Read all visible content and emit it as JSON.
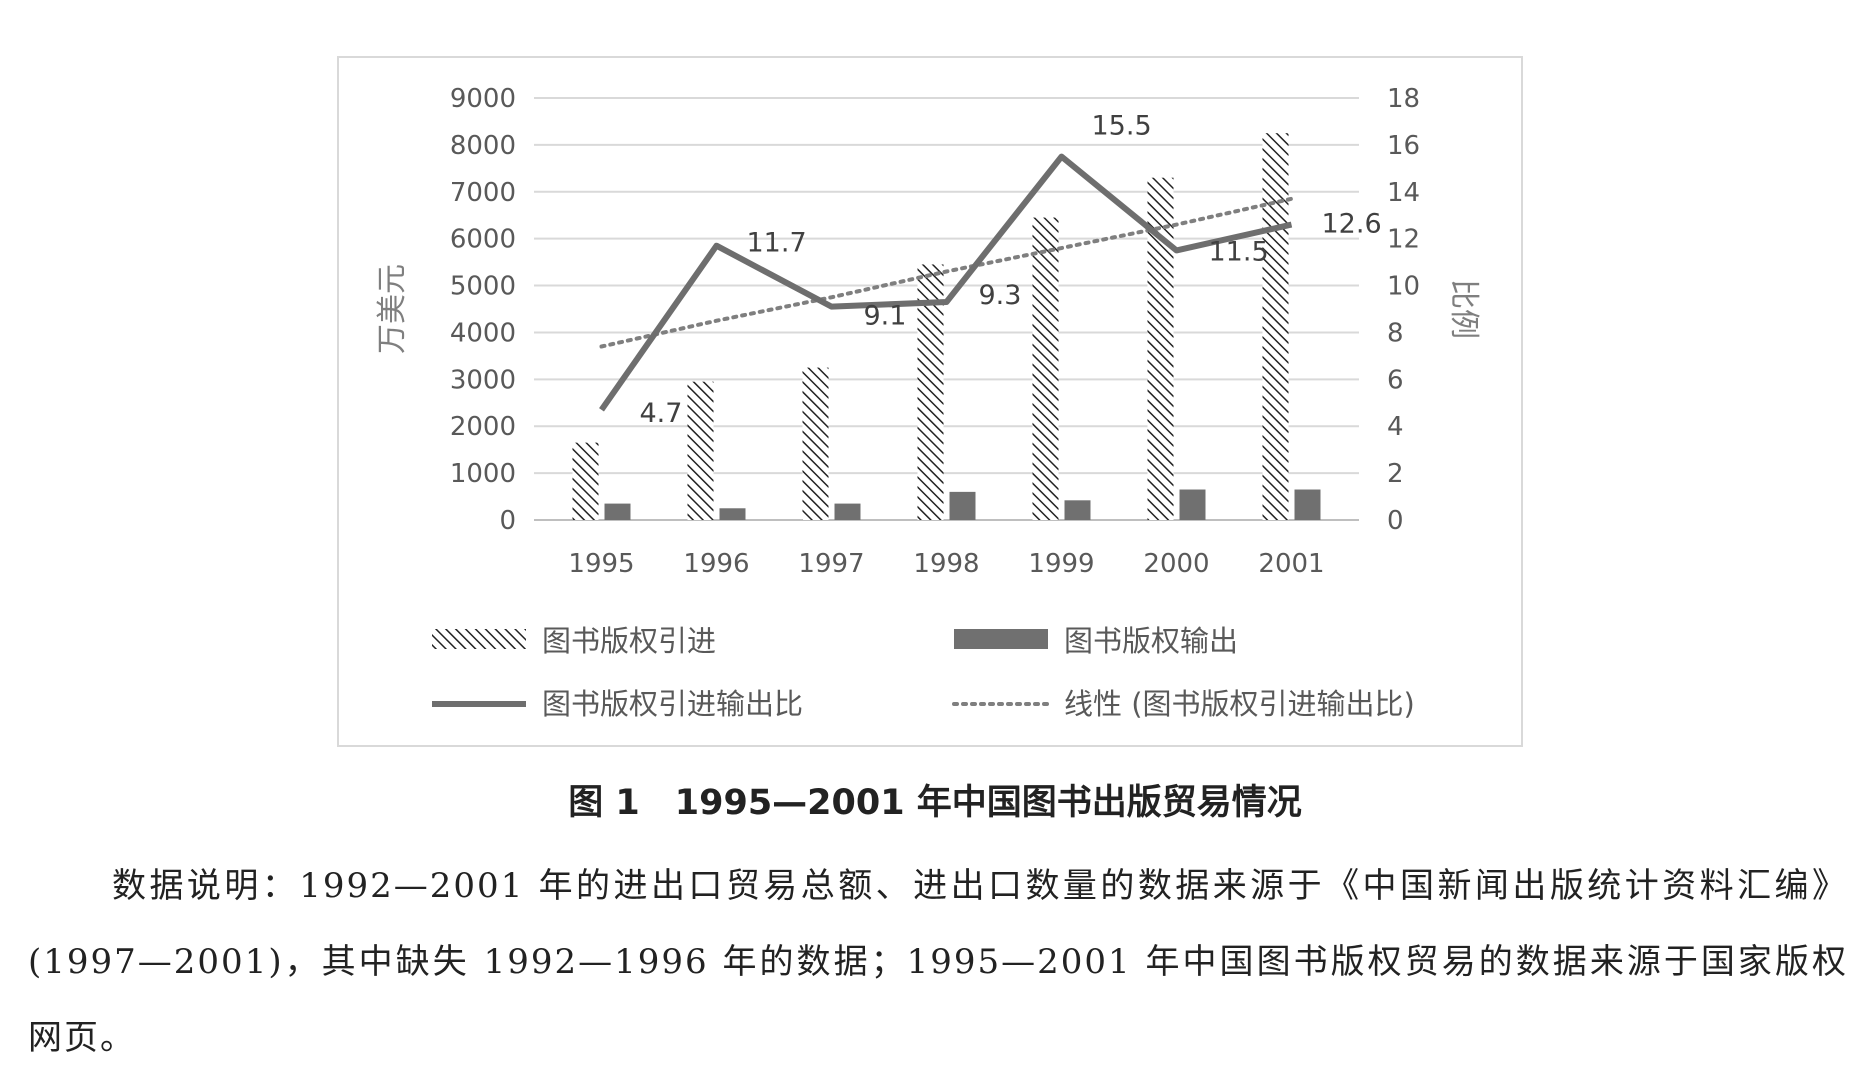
{
  "chart_data": {
    "type": "bar",
    "categories": [
      "1995",
      "1996",
      "1997",
      "1998",
      "1999",
      "2000",
      "2001"
    ],
    "series": [
      {
        "name": "图书版权引进",
        "type": "bar",
        "axis": "left",
        "pattern": "hatch",
        "values": [
          1650,
          2950,
          3250,
          5450,
          6450,
          7300,
          8250
        ]
      },
      {
        "name": "图书版权输出",
        "type": "bar",
        "axis": "left",
        "color": "#707070",
        "values": [
          350,
          250,
          350,
          600,
          420,
          650,
          650
        ]
      },
      {
        "name": "图书版权引进输出比",
        "type": "line",
        "axis": "right",
        "color": "#6e6e6e",
        "values": [
          4.7,
          11.7,
          9.1,
          9.3,
          15.5,
          11.5,
          12.6
        ]
      },
      {
        "name": "线性 (图书版权引进输出比)",
        "type": "line",
        "axis": "right",
        "style": "dotted",
        "color": "#7f7f7f",
        "values": [
          7.4,
          8.5,
          9.5,
          10.6,
          11.6,
          12.6,
          13.7
        ]
      }
    ],
    "data_labels": [
      "4.7",
      "11.7",
      "9.1",
      "9.3",
      "15.5",
      "11.5",
      "12.6"
    ],
    "left_axis": {
      "label": "万美元",
      "ylim": [
        0,
        9000
      ],
      "ticks": [
        "0",
        "1000",
        "2000",
        "3000",
        "4000",
        "5000",
        "6000",
        "7000",
        "8000",
        "9000"
      ]
    },
    "right_axis": {
      "label": "比例",
      "ylim": [
        0,
        18
      ],
      "ticks": [
        "0",
        "2",
        "4",
        "6",
        "8",
        "10",
        "12",
        "14",
        "16",
        "18"
      ]
    },
    "grid": true,
    "legend_placement": "bottom"
  },
  "caption": "图 1　1995—2001 年中国图书出版贸易情况",
  "note": "数据说明：1992—2001 年的进出口贸易总额、进出口数量的数据来源于《中国新闻出版统计资料汇编》(1997—2001)，其中缺失 1992—1996 年的数据；1995—2001 年中国图书版权贸易的数据来源于国家版权网页。"
}
